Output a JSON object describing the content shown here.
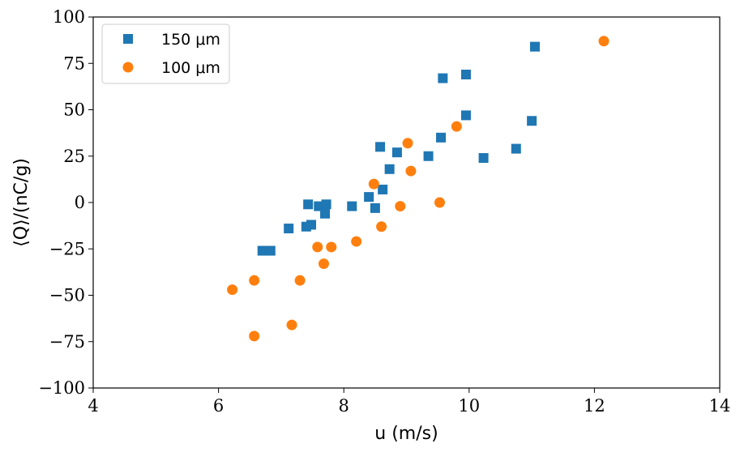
{
  "chart_data": {
    "type": "scatter",
    "title": "",
    "xlabel": "u (m/s)",
    "ylabel": "⟨Q⟩/(nC/g)",
    "xlim": [
      4,
      14
    ],
    "ylim": [
      -100,
      100
    ],
    "xticks": [
      4,
      6,
      8,
      10,
      12,
      14
    ],
    "yticks": [
      -100,
      -75,
      -50,
      -25,
      0,
      25,
      50,
      75,
      100
    ],
    "ytick_labels": [
      "−100",
      "−75",
      "−50",
      "−25",
      "0",
      "25",
      "50",
      "75",
      "100"
    ],
    "grid": false,
    "legend_position": "top-left",
    "series": [
      {
        "name": "150 μm",
        "marker": "square",
        "color": "#1f77b4",
        "points": [
          [
            6.7,
            -26
          ],
          [
            6.83,
            -26
          ],
          [
            7.12,
            -14
          ],
          [
            7.4,
            -13
          ],
          [
            7.43,
            -1
          ],
          [
            7.48,
            -12
          ],
          [
            7.6,
            -2
          ],
          [
            7.7,
            -6
          ],
          [
            7.72,
            -1
          ],
          [
            8.13,
            -2
          ],
          [
            8.4,
            3
          ],
          [
            8.5,
            -3
          ],
          [
            8.58,
            30
          ],
          [
            8.62,
            7
          ],
          [
            8.73,
            18
          ],
          [
            8.85,
            27
          ],
          [
            9.35,
            25
          ],
          [
            9.55,
            35
          ],
          [
            9.58,
            67
          ],
          [
            9.95,
            69
          ],
          [
            9.95,
            47
          ],
          [
            10.23,
            24
          ],
          [
            10.75,
            29
          ],
          [
            11.0,
            44
          ],
          [
            11.05,
            84
          ]
        ]
      },
      {
        "name": "100 μm",
        "marker": "circle",
        "color": "#ff7f0e",
        "points": [
          [
            6.22,
            -47
          ],
          [
            6.57,
            -42
          ],
          [
            6.57,
            -72
          ],
          [
            7.17,
            -66
          ],
          [
            7.3,
            -42
          ],
          [
            7.58,
            -24
          ],
          [
            7.68,
            -33
          ],
          [
            7.8,
            -24
          ],
          [
            8.2,
            -21
          ],
          [
            8.48,
            10
          ],
          [
            8.6,
            -13
          ],
          [
            8.9,
            -2
          ],
          [
            9.02,
            32
          ],
          [
            9.07,
            17
          ],
          [
            9.53,
            0
          ],
          [
            9.8,
            41
          ],
          [
            12.15,
            87
          ]
        ]
      }
    ]
  }
}
